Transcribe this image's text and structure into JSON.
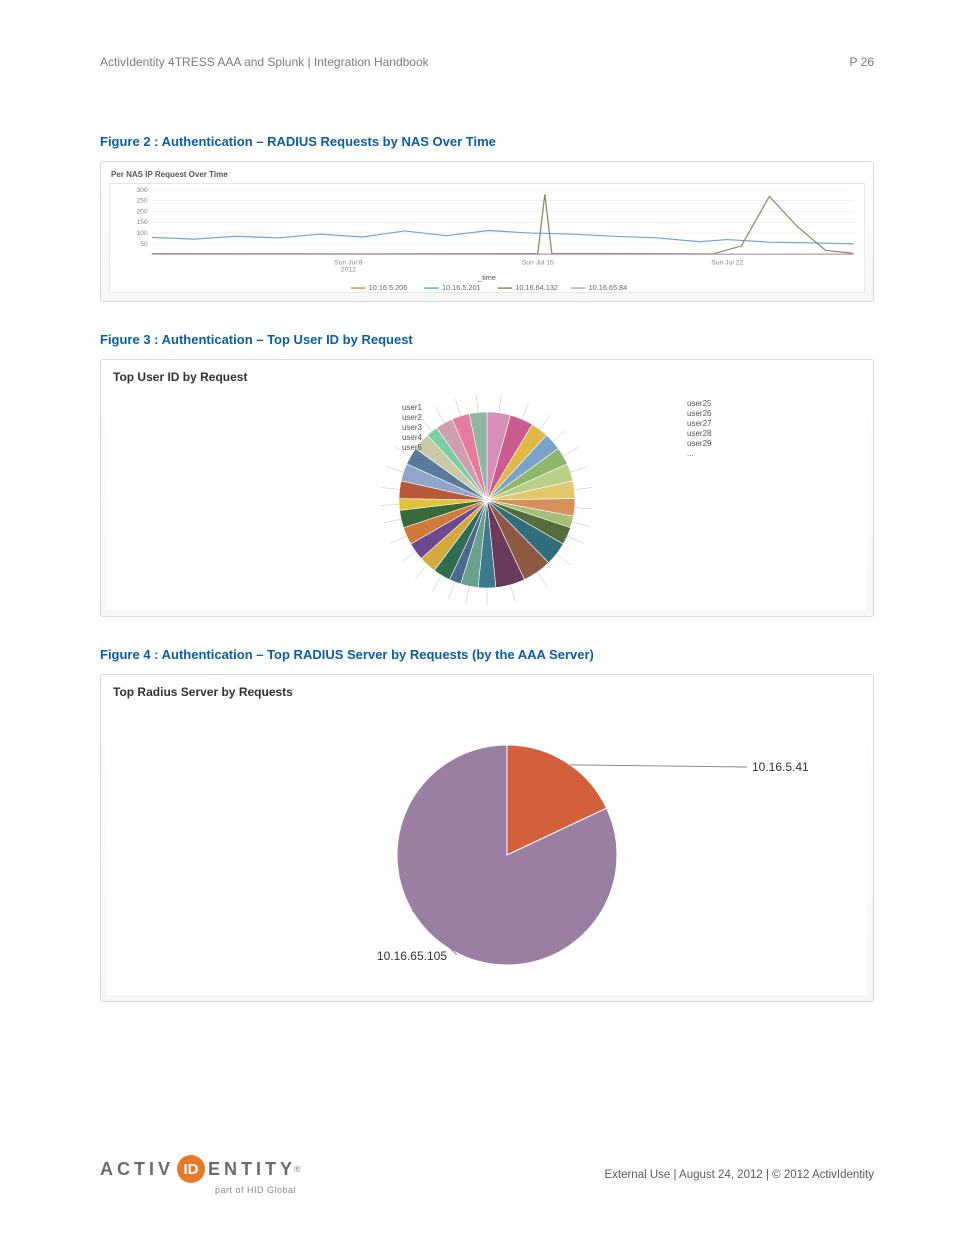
{
  "header": {
    "left": "ActivIdentity 4TRESS AAA and Splunk | Integration Handbook",
    "right": "P 26"
  },
  "figure2": {
    "title": "Figure 2 : Authentication – RADIUS Requests by NAS Over Time",
    "panel_title": "Per NAS IP Request Over Time",
    "type": "line",
    "ylim": [
      0,
      300
    ],
    "yticks": [
      50,
      100,
      150,
      200,
      250,
      300
    ],
    "xticks": [
      "Sun Jul 8\n2012",
      "Sun Jul 15",
      "Sun Jul 22"
    ],
    "x_axis_label": "_time",
    "series": [
      {
        "name": "10.16.5.206",
        "color": "#e58b3a",
        "points": [
          [
            0,
            4
          ],
          [
            10,
            3
          ],
          [
            20,
            4
          ],
          [
            30,
            3
          ],
          [
            40,
            4
          ],
          [
            50,
            3
          ],
          [
            60,
            3
          ],
          [
            70,
            4
          ],
          [
            80,
            3
          ],
          [
            90,
            3
          ],
          [
            100,
            3
          ]
        ]
      },
      {
        "name": "10.16.5.201",
        "color": "#6aa7d6",
        "points": [
          [
            0,
            80
          ],
          [
            6,
            72
          ],
          [
            12,
            85
          ],
          [
            18,
            78
          ],
          [
            24,
            95
          ],
          [
            30,
            82
          ],
          [
            36,
            110
          ],
          [
            42,
            88
          ],
          [
            48,
            112
          ],
          [
            54,
            100
          ],
          [
            60,
            95
          ],
          [
            66,
            85
          ],
          [
            72,
            78
          ],
          [
            78,
            60
          ],
          [
            82,
            70
          ],
          [
            88,
            58
          ],
          [
            94,
            55
          ],
          [
            100,
            50
          ]
        ]
      },
      {
        "name": "10.16.64.132",
        "color": "#8a8a60",
        "points": [
          [
            0,
            5
          ],
          [
            30,
            4
          ],
          [
            55,
            5
          ],
          [
            56,
            280
          ],
          [
            57,
            6
          ],
          [
            70,
            5
          ],
          [
            80,
            4
          ],
          [
            84,
            40
          ],
          [
            88,
            270
          ],
          [
            92,
            130
          ],
          [
            96,
            20
          ],
          [
            100,
            6
          ]
        ]
      },
      {
        "name": "10.16.65.84",
        "color": "#c5a0c8",
        "points": [
          [
            0,
            2
          ],
          [
            50,
            2
          ],
          [
            100,
            2
          ]
        ]
      }
    ],
    "background": "#ffffff",
    "grid_color": "#e6e6e6"
  },
  "figure3": {
    "title": "Figure 3 : Authentication – Top User ID by Request",
    "panel_title": "Top User ID by Request",
    "type": "pie",
    "left_labels": [
      "user1",
      "user2",
      "user3",
      "user4",
      "user5",
      "..."
    ],
    "right_labels": [
      "user25",
      "user26",
      "user27",
      "user28",
      "user29",
      "..."
    ],
    "slices": [
      {
        "v": 4,
        "c": "#d68fb8"
      },
      {
        "v": 4,
        "c": "#c95b8f"
      },
      {
        "v": 3,
        "c": "#e0b845"
      },
      {
        "v": 3,
        "c": "#7aa3c9"
      },
      {
        "v": 3,
        "c": "#8fb76a"
      },
      {
        "v": 3,
        "c": "#b7cf87"
      },
      {
        "v": 3,
        "c": "#e3c96e"
      },
      {
        "v": 3,
        "c": "#d88f5a"
      },
      {
        "v": 2,
        "c": "#a5bf7a"
      },
      {
        "v": 3,
        "c": "#556d3d"
      },
      {
        "v": 4,
        "c": "#2f6e7a"
      },
      {
        "v": 5,
        "c": "#8f5a42"
      },
      {
        "v": 5,
        "c": "#6b3a5a"
      },
      {
        "v": 3,
        "c": "#3d7a8f"
      },
      {
        "v": 3,
        "c": "#6aa08a"
      },
      {
        "v": 2,
        "c": "#4a6a8f"
      },
      {
        "v": 3,
        "c": "#2f6d52"
      },
      {
        "v": 3,
        "c": "#d6a93d"
      },
      {
        "v": 3,
        "c": "#6d4a8f"
      },
      {
        "v": 3,
        "c": "#cf7a3a"
      },
      {
        "v": 3,
        "c": "#3a6a3a"
      },
      {
        "v": 2,
        "c": "#e2c23a"
      },
      {
        "v": 3,
        "c": "#b85a3a"
      },
      {
        "v": 3,
        "c": "#8fa5c9"
      },
      {
        "v": 3,
        "c": "#5a7a9a"
      },
      {
        "v": 3,
        "c": "#c9c9a5"
      },
      {
        "v": 2,
        "c": "#7acfa0"
      },
      {
        "v": 3,
        "c": "#cf9fb0"
      },
      {
        "v": 3,
        "c": "#e87aa0"
      },
      {
        "v": 3,
        "c": "#8fb7a0"
      }
    ],
    "background": "#ffffff"
  },
  "figure4": {
    "title": "Figure 4 : Authentication – Top RADIUS Server by Requests (by the AAA Server)",
    "panel_title": "Top Radius Server by Requests",
    "type": "pie",
    "slices": [
      {
        "label": "10.16.5.41",
        "value": 18,
        "color": "#d35f3b"
      },
      {
        "label": "10.16.65.105",
        "value": 82,
        "color": "#9a7fa3"
      }
    ],
    "background": "#ffffff"
  },
  "footer": {
    "logo_left": "ACTIV",
    "logo_badge": "ID",
    "logo_right": "ENTITY",
    "logo_sub": "part of HID Global",
    "text": "External Use | August 24, 2012 | © 2012 ActivIdentity"
  }
}
